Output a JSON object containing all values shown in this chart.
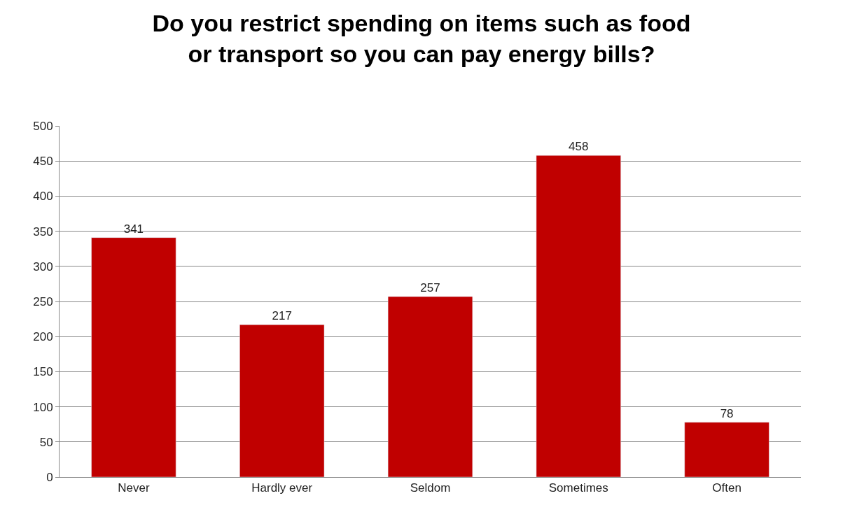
{
  "chart_data": {
    "type": "bar",
    "title": "Do you restrict spending on items such as food\nor transport so you can pay energy bills?",
    "categories": [
      "Never",
      "Hardly ever",
      "Seldom",
      "Sometimes",
      "Often"
    ],
    "values": [
      341,
      217,
      257,
      458,
      78
    ],
    "color": "#c00000",
    "ylim": [
      0,
      500
    ],
    "yticks": [
      0,
      50,
      100,
      150,
      200,
      250,
      300,
      350,
      400,
      450,
      500
    ],
    "grid": "y",
    "data_labels": true
  }
}
